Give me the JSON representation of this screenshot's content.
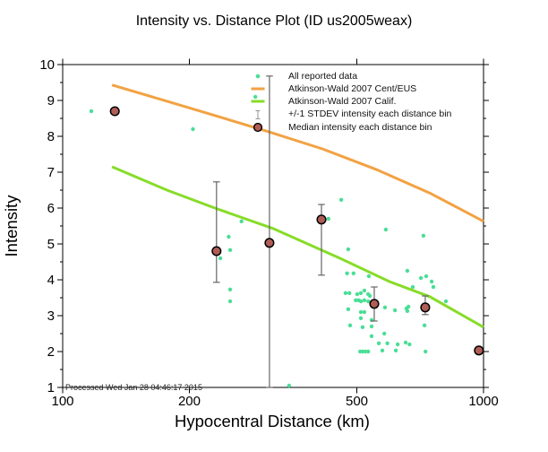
{
  "footnote": "Processed Wed Jan 28 04:46:17 2015",
  "colors": {
    "scatter": "#4ade96",
    "ceus_line": "#f2a243",
    "calif_line": "#87dc28",
    "median_fill": "#b05d57",
    "median_edge": "#000000",
    "error_bar": "#666666",
    "axis": "#000000"
  },
  "axes": {
    "x": {
      "label": "Hypocentral Distance (km)",
      "scale": "log",
      "min": 100,
      "max": 1000,
      "ticks": [
        100,
        200,
        500,
        1000
      ]
    },
    "y": {
      "label": "Intensity",
      "min": 1,
      "max": 10,
      "major_step": 1,
      "minor_step": 0.5
    }
  },
  "chart_data": {
    "type": "scatter",
    "title": "Intensity vs. Distance Plot (ID us2005weax)",
    "xlabel": "Hypocentral Distance (km)",
    "ylabel": "Intensity",
    "x_scale": "log",
    "xlim": [
      100,
      1000
    ],
    "ylim": [
      1,
      10
    ],
    "grid": false,
    "legend_position": "inside-top-right",
    "series": [
      {
        "name": "All reported data",
        "type": "scatter",
        "color": "#4ade96",
        "points": [
          [
            117,
            8.7
          ],
          [
            204,
            8.2
          ],
          [
            287,
            9.1
          ],
          [
            266,
            5.63
          ],
          [
            248,
            5.2
          ],
          [
            250,
            4.83
          ],
          [
            237,
            4.6
          ],
          [
            250,
            3.73
          ],
          [
            250,
            3.4
          ],
          [
            345,
            1.05
          ],
          [
            428,
            5.7
          ],
          [
            459,
            6.23
          ],
          [
            586,
            5.4
          ],
          [
            477,
            4.85
          ],
          [
            720,
            5.23
          ],
          [
            474,
            4.18
          ],
          [
            491,
            4.18
          ],
          [
            659,
            4.25
          ],
          [
            534,
            4.1
          ],
          [
            710,
            4.05
          ],
          [
            470,
            3.63
          ],
          [
            480,
            3.63
          ],
          [
            501,
            3.6
          ],
          [
            511,
            3.63
          ],
          [
            521,
            3.7
          ],
          [
            532,
            3.6
          ],
          [
            537,
            3.55
          ],
          [
            497,
            3.43
          ],
          [
            505,
            3.43
          ],
          [
            511,
            3.4
          ],
          [
            521,
            3.43
          ],
          [
            532,
            3.4
          ],
          [
            477,
            3.18
          ],
          [
            511,
            3.1
          ],
          [
            521,
            3.1
          ],
          [
            583,
            3.23
          ],
          [
            616,
            3.15
          ],
          [
            656,
            3.2
          ],
          [
            663,
            3.25
          ],
          [
            659,
            3.13
          ],
          [
            511,
            2.93
          ],
          [
            542,
            2.88
          ],
          [
            482,
            2.73
          ],
          [
            516,
            2.68
          ],
          [
            542,
            2.7
          ],
          [
            724,
            2.73
          ],
          [
            542,
            2.43
          ],
          [
            581,
            2.5
          ],
          [
            564,
            2.23
          ],
          [
            591,
            2.23
          ],
          [
            625,
            2.2
          ],
          [
            653,
            2.25
          ],
          [
            667,
            2.2
          ],
          [
            509,
            2
          ],
          [
            516,
            2
          ],
          [
            524,
            2
          ],
          [
            532,
            2
          ],
          [
            575,
            2.03
          ],
          [
            619,
            2.03
          ],
          [
            728,
            2
          ],
          [
            814,
            3.4
          ],
          [
            679,
            3.8
          ],
          [
            731,
            4.1
          ],
          [
            753,
            3.95
          ],
          [
            760,
            3.8
          ]
        ]
      },
      {
        "name": "Atkinson-Wald 2007 Cent/EUS",
        "type": "line",
        "color": "#f2a243",
        "points": [
          [
            131,
            9.43
          ],
          [
            171,
            9.03
          ],
          [
            230,
            8.58
          ],
          [
            308,
            8.13
          ],
          [
            414,
            7.65
          ],
          [
            555,
            7.08
          ],
          [
            745,
            6.42
          ],
          [
            1000,
            5.63
          ]
        ]
      },
      {
        "name": "Atkinson-Wald 2007 Calif.",
        "type": "line",
        "color": "#87dc28",
        "points": [
          [
            131,
            7.15
          ],
          [
            177,
            6.5
          ],
          [
            230,
            6.0
          ],
          [
            316,
            5.43
          ],
          [
            456,
            4.6
          ],
          [
            598,
            3.95
          ],
          [
            745,
            3.53
          ],
          [
            1000,
            2.68
          ]
        ]
      },
      {
        "name": "+/-1 STDEV intensity each distance bin",
        "type": "errorbar",
        "color": "#666666",
        "points": [
          [
            232,
            3.93,
            6.73
          ],
          [
            310,
            1.0,
            9.68
          ],
          [
            412,
            4.13,
            6.1
          ],
          [
            550,
            2.85,
            3.8
          ],
          [
            727,
            3.03,
            3.55
          ]
        ]
      },
      {
        "name": "Median intensity each distance bin",
        "type": "points",
        "color": "#b05d57",
        "points": [
          [
            133,
            8.7
          ],
          [
            232,
            4.8
          ],
          [
            310,
            5.03
          ],
          [
            412,
            5.68
          ],
          [
            550,
            3.33
          ],
          [
            727,
            3.23
          ],
          [
            975,
            2.03
          ]
        ]
      }
    ]
  }
}
